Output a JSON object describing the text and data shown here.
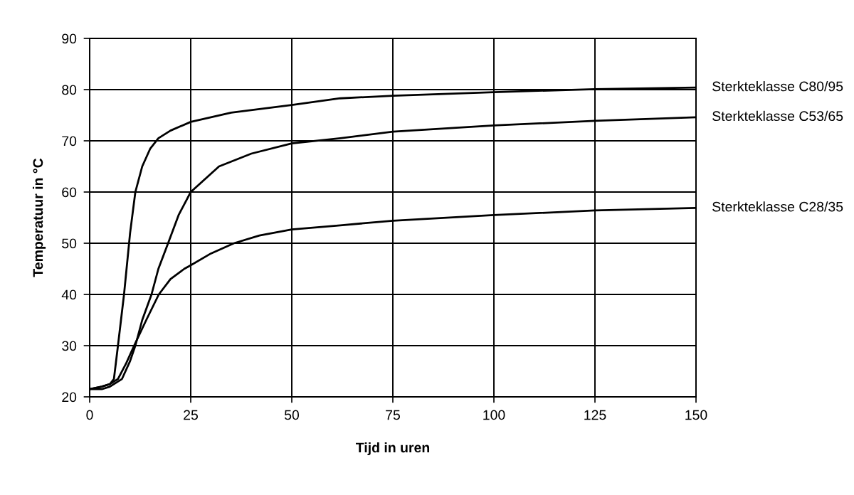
{
  "chart_data": {
    "type": "line",
    "xlabel": "Tijd in uren",
    "ylabel": "Temperatuur in °C",
    "xlim": [
      0,
      150
    ],
    "ylim": [
      20,
      90
    ],
    "xticks": [
      0,
      25,
      50,
      75,
      100,
      125,
      150
    ],
    "yticks": [
      20,
      30,
      40,
      50,
      60,
      70,
      80,
      90
    ],
    "grid": true,
    "legend": false,
    "marker": "none",
    "line_style": "solid",
    "series": [
      {
        "name": "Sterkteklasse C80/95",
        "color": "#000000",
        "x": [
          0,
          3,
          5,
          6,
          7,
          8.5,
          10,
          11.3,
          13,
          15,
          17,
          20,
          25,
          35,
          50,
          62,
          75,
          100,
          125,
          150
        ],
        "values": [
          21.5,
          22,
          22.5,
          23.5,
          30,
          40,
          52,
          60,
          65,
          68.5,
          70.5,
          72,
          73.7,
          75.5,
          77,
          78.3,
          78.8,
          79.5,
          80.1,
          80.4
        ]
      },
      {
        "name": "Sterkteklasse C53/65",
        "color": "#000000",
        "x": [
          0,
          3,
          5,
          8,
          10,
          11.3,
          13,
          15.3,
          17,
          19.4,
          22,
          25,
          32,
          40,
          50,
          62,
          75,
          100,
          125,
          150
        ],
        "values": [
          21.5,
          21.5,
          22,
          23.5,
          27,
          30,
          35,
          40,
          45,
          50,
          55.5,
          60,
          65,
          67.5,
          69.5,
          70.5,
          71.8,
          73,
          73.9,
          74.6
        ]
      },
      {
        "name": "Sterkteklasse C28/35",
        "color": "#000000",
        "x": [
          0,
          3,
          5,
          7,
          9,
          11,
          14,
          17.1,
          20,
          23.4,
          25,
          30,
          35.7,
          42,
          50,
          62,
          75,
          100,
          125,
          150
        ],
        "values": [
          21.5,
          22,
          22.5,
          23.5,
          26.5,
          30,
          35,
          40,
          43,
          45,
          45.7,
          48,
          50,
          51.5,
          52.7,
          53.5,
          54.4,
          55.5,
          56.4,
          56.9
        ]
      }
    ]
  }
}
